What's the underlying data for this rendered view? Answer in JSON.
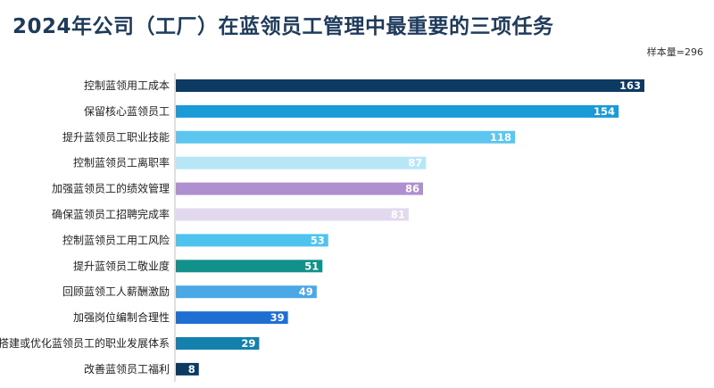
{
  "title": "2024年公司（工厂）在蓝领员工管理中最重要的三项任务",
  "sample_note": "样本量=296",
  "chart_data": {
    "type": "bar",
    "orientation": "horizontal",
    "categories": [
      "控制蓝领用工成本",
      "保留核心蓝领员工",
      "提升蓝领员工职业技能",
      "控制蓝领员工离职率",
      "加强蓝领员工的绩效管理",
      "确保蓝领员工招聘完成率",
      "控制蓝领员工用工风险",
      "提升蓝领员工敬业度",
      "回顾蓝领工人薪酬激励",
      "加强岗位编制合理性",
      "搭建或优化蓝领员工的职业发展体系",
      "改善蓝领员工福利"
    ],
    "values": [
      163,
      154,
      118,
      87,
      86,
      81,
      53,
      51,
      49,
      39,
      29,
      8
    ],
    "colors": [
      "#0d3a63",
      "#1a9ad6",
      "#5dc6ee",
      "#b7e6f7",
      "#b08fd1",
      "#e2d9ef",
      "#4ec3f0",
      "#12918a",
      "#4aa8e6",
      "#1f6ed1",
      "#1380ad",
      "#0d3a63"
    ],
    "xlim": [
      0,
      163
    ],
    "grid": false,
    "legend": "none"
  }
}
